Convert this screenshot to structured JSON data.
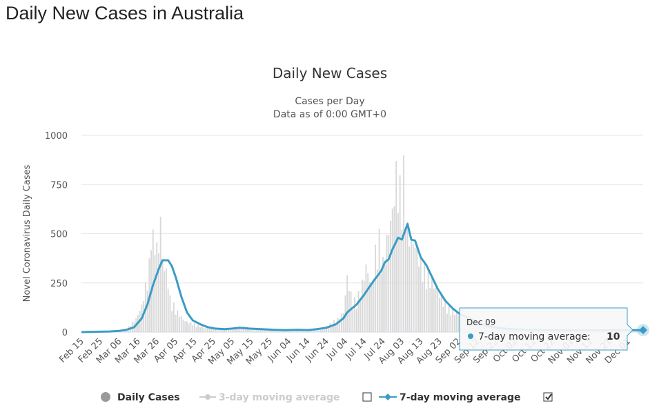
{
  "page": {
    "title": "Daily New Cases in Australia"
  },
  "chart_data": {
    "type": "bar",
    "title": "Daily New Cases",
    "subtitle_lines": [
      "Cases per Day",
      "Data as of 0:00 GMT+0"
    ],
    "ylabel": "Novel Coronavirus Daily Cases",
    "ylim": [
      0,
      1000
    ],
    "y_ticks": [
      "0",
      "250",
      "500",
      "750",
      "1000"
    ],
    "y_tick_values": [
      0,
      250,
      500,
      750,
      1000
    ],
    "grid": true,
    "x_start": "2020-02-15",
    "x_end": "2020-12-09",
    "x_tick_labels": [
      "Feb 15",
      "Feb 25",
      "Mar 06",
      "Mar 16",
      "Mar 26",
      "Apr 05",
      "Apr 15",
      "Apr 25",
      "May 05",
      "May 15",
      "May 25",
      "Jun 04",
      "Jun 14",
      "Jun 24",
      "Jul 04",
      "Jul 14",
      "Jul 24",
      "Aug 03",
      "Aug 13",
      "Aug 23",
      "Sep 02",
      "Sep 12",
      "Sep 22",
      "Oct 02",
      "Oct 12",
      "Oct 22",
      "Nov 01",
      "Nov 11",
      "Nov 21",
      "Dec 01"
    ],
    "series": [
      {
        "name": "Daily Cases",
        "type": "bar",
        "color": "#d9d9d9",
        "points": [
          [
            "2020-02-15",
            0
          ],
          [
            "2020-03-01",
            3
          ],
          [
            "2020-03-10",
            15
          ],
          [
            "2020-03-15",
            60
          ],
          [
            "2020-03-18",
            120
          ],
          [
            "2020-03-21",
            250
          ],
          [
            "2020-03-22",
            300
          ],
          [
            "2020-03-23",
            530
          ],
          [
            "2020-03-24",
            420
          ],
          [
            "2020-03-25",
            430
          ],
          [
            "2020-03-26",
            380
          ],
          [
            "2020-03-27",
            390
          ],
          [
            "2020-03-28",
            520
          ],
          [
            "2020-03-29",
            330
          ],
          [
            "2020-03-30",
            300
          ],
          [
            "2020-04-01",
            240
          ],
          [
            "2020-04-02",
            150
          ],
          [
            "2020-04-04",
            120
          ],
          [
            "2020-04-06",
            90
          ],
          [
            "2020-04-08",
            70
          ],
          [
            "2020-04-10",
            50
          ],
          [
            "2020-04-14",
            40
          ],
          [
            "2020-04-20",
            20
          ],
          [
            "2020-04-25",
            15
          ],
          [
            "2020-05-05",
            20
          ],
          [
            "2020-05-10",
            25
          ],
          [
            "2020-05-20",
            15
          ],
          [
            "2020-06-01",
            10
          ],
          [
            "2020-06-10",
            12
          ],
          [
            "2020-06-15",
            10
          ],
          [
            "2020-06-20",
            18
          ],
          [
            "2020-06-25",
            30
          ],
          [
            "2020-06-30",
            60
          ],
          [
            "2020-07-03",
            90
          ],
          [
            "2020-07-05",
            250
          ],
          [
            "2020-07-08",
            130
          ],
          [
            "2020-07-12",
            180
          ],
          [
            "2020-07-15",
            300
          ],
          [
            "2020-07-18",
            210
          ],
          [
            "2020-07-20",
            360
          ],
          [
            "2020-07-22",
            420
          ],
          [
            "2020-07-24",
            310
          ],
          [
            "2020-07-27",
            470
          ],
          [
            "2020-07-29",
            550
          ],
          [
            "2020-07-31",
            720
          ],
          [
            "2020-08-02",
            640
          ],
          [
            "2020-08-04",
            720
          ],
          [
            "2020-08-06",
            460
          ],
          [
            "2020-08-08",
            420
          ],
          [
            "2020-08-10",
            400
          ],
          [
            "2020-08-13",
            320
          ],
          [
            "2020-08-17",
            260
          ],
          [
            "2020-08-21",
            200
          ],
          [
            "2020-08-25",
            140
          ],
          [
            "2020-08-29",
            100
          ],
          [
            "2020-09-02",
            80
          ],
          [
            "2020-09-06",
            60
          ],
          [
            "2020-09-10",
            50
          ],
          [
            "2020-09-15",
            35
          ],
          [
            "2020-09-20",
            25
          ],
          [
            "2020-09-25",
            15
          ],
          [
            "2020-10-01",
            12
          ],
          [
            "2020-10-10",
            10
          ],
          [
            "2020-10-20",
            8
          ],
          [
            "2020-11-01",
            6
          ],
          [
            "2020-11-15",
            8
          ],
          [
            "2020-11-25",
            10
          ],
          [
            "2020-12-09",
            10
          ]
        ]
      },
      {
        "name": "3-day moving average",
        "type": "line",
        "color": "#cccccc",
        "visible": false
      },
      {
        "name": "7-day moving average",
        "type": "line",
        "color": "#3a9cc5",
        "points": [
          [
            "2020-02-15",
            0
          ],
          [
            "2020-03-01",
            3
          ],
          [
            "2020-03-06",
            6
          ],
          [
            "2020-03-10",
            12
          ],
          [
            "2020-03-14",
            25
          ],
          [
            "2020-03-18",
            70
          ],
          [
            "2020-03-21",
            140
          ],
          [
            "2020-03-24",
            240
          ],
          [
            "2020-03-27",
            320
          ],
          [
            "2020-03-29",
            365
          ],
          [
            "2020-04-01",
            365
          ],
          [
            "2020-04-03",
            335
          ],
          [
            "2020-04-05",
            280
          ],
          [
            "2020-04-08",
            180
          ],
          [
            "2020-04-11",
            100
          ],
          [
            "2020-04-14",
            60
          ],
          [
            "2020-04-18",
            40
          ],
          [
            "2020-04-22",
            25
          ],
          [
            "2020-04-26",
            18
          ],
          [
            "2020-05-01",
            15
          ],
          [
            "2020-05-05",
            18
          ],
          [
            "2020-05-09",
            22
          ],
          [
            "2020-05-14",
            18
          ],
          [
            "2020-05-20",
            15
          ],
          [
            "2020-05-27",
            12
          ],
          [
            "2020-06-02",
            10
          ],
          [
            "2020-06-09",
            12
          ],
          [
            "2020-06-14",
            10
          ],
          [
            "2020-06-19",
            15
          ],
          [
            "2020-06-24",
            22
          ],
          [
            "2020-06-29",
            40
          ],
          [
            "2020-07-03",
            70
          ],
          [
            "2020-07-05",
            100
          ],
          [
            "2020-07-10",
            140
          ],
          [
            "2020-07-14",
            190
          ],
          [
            "2020-07-19",
            260
          ],
          [
            "2020-07-23",
            310
          ],
          [
            "2020-07-25",
            355
          ],
          [
            "2020-07-27",
            370
          ],
          [
            "2020-07-29",
            420
          ],
          [
            "2020-07-31",
            460
          ],
          [
            "2020-08-01",
            480
          ],
          [
            "2020-08-03",
            470
          ],
          [
            "2020-08-06",
            550
          ],
          [
            "2020-08-08",
            470
          ],
          [
            "2020-08-10",
            465
          ],
          [
            "2020-08-13",
            380
          ],
          [
            "2020-08-16",
            340
          ],
          [
            "2020-08-19",
            280
          ],
          [
            "2020-08-22",
            220
          ],
          [
            "2020-08-26",
            160
          ],
          [
            "2020-08-30",
            120
          ],
          [
            "2020-09-03",
            90
          ],
          [
            "2020-09-08",
            70
          ],
          [
            "2020-09-13",
            45
          ],
          [
            "2020-09-18",
            30
          ],
          [
            "2020-09-24",
            20
          ],
          [
            "2020-10-01",
            14
          ],
          [
            "2020-10-10",
            12
          ],
          [
            "2020-10-20",
            10
          ],
          [
            "2020-11-01",
            9
          ],
          [
            "2020-11-15",
            9
          ],
          [
            "2020-11-25",
            10
          ],
          [
            "2020-12-09",
            10
          ]
        ]
      }
    ],
    "legend": {
      "placement": "bottom",
      "items": [
        {
          "label": "Daily Cases",
          "active": true,
          "checkbox": false
        },
        {
          "label": "3-day moving average",
          "active": false,
          "checkbox": true,
          "checked": false
        },
        {
          "label": "7-day moving average",
          "active": true,
          "checkbox": true,
          "checked": true
        }
      ]
    },
    "tooltip": {
      "date": "Dec 09",
      "series": "7-day moving average",
      "label": "7-day moving average:",
      "value": "10"
    }
  },
  "colors": {
    "accent": "#3a9cc5",
    "bar": "#d9d9d9",
    "grid": "#e6e6e6"
  }
}
